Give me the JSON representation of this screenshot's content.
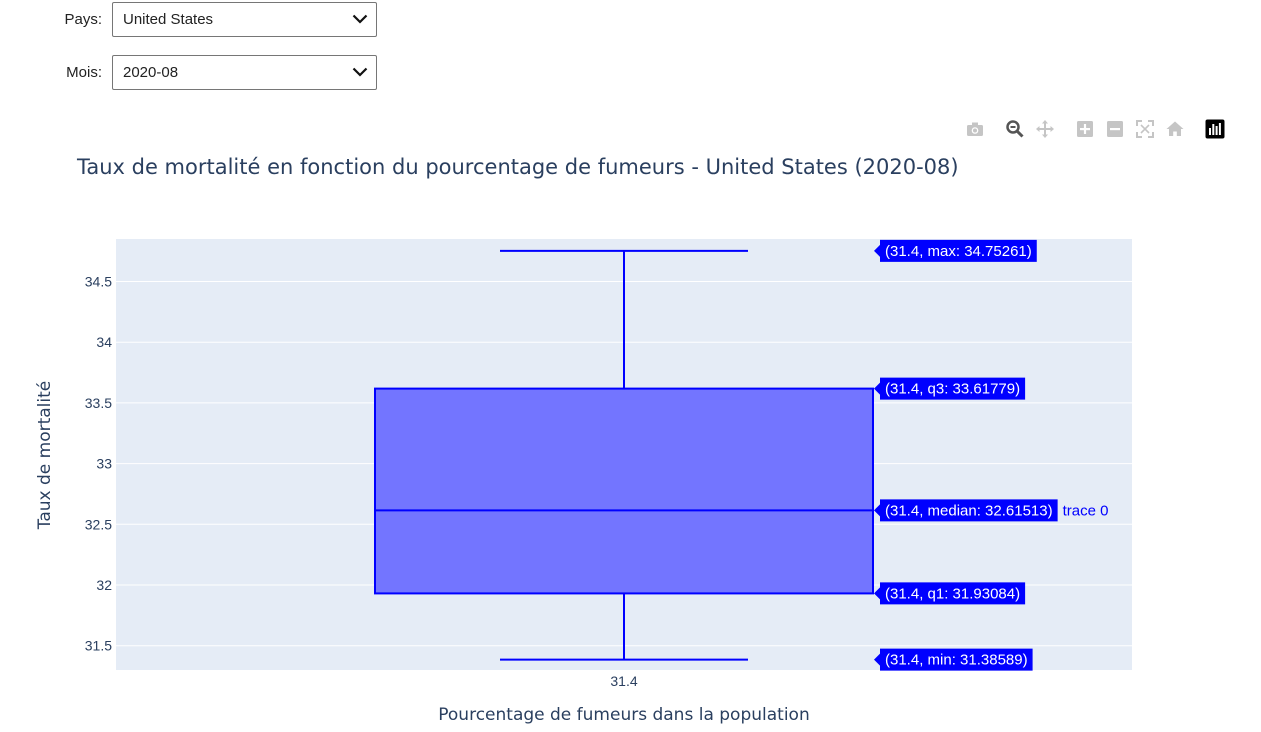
{
  "controls": {
    "country": {
      "label": "Pays:",
      "value": "United States"
    },
    "month": {
      "label": "Mois:",
      "value": "2020-08"
    }
  },
  "modebar": {
    "icons": [
      "camera-icon",
      "zoom-icon",
      "pan-icon",
      "zoom-in-icon",
      "zoom-out-icon",
      "autoscale-icon",
      "reset-axes-icon",
      "plotly-logo-icon"
    ]
  },
  "colors": {
    "box_line": "#0000ff",
    "box_fill": "#7375ff",
    "plot_bg": "#e5ecf6",
    "hover_bg": "#0000ff",
    "text": "#2a3f5f"
  },
  "chart_data": {
    "type": "box",
    "title": "Taux de mortalité en fonction du pourcentage de fumeurs - United States (2020-08)",
    "xlabel": "Pourcentage de fumeurs dans la population",
    "ylabel": "Taux de mortalité",
    "categories": [
      "31.4"
    ],
    "ylim": [
      31.3,
      34.85
    ],
    "yticks": [
      31.5,
      32,
      32.5,
      33,
      33.5,
      34,
      34.5
    ],
    "ytick_labels": [
      "31.5",
      "32",
      "32.5",
      "33",
      "33.5",
      "34",
      "34.5"
    ],
    "grid": true,
    "box": {
      "min": 31.38589,
      "q1": 31.93084,
      "median": 32.61513,
      "q3": 33.61779,
      "max": 34.75261
    },
    "hover_labels": [
      {
        "stat": "max",
        "value": 34.75261,
        "text": "(31.4, max: 34.75261)"
      },
      {
        "stat": "q3",
        "value": 33.61779,
        "text": "(31.4, q3: 33.61779)"
      },
      {
        "stat": "median",
        "value": 32.61513,
        "text": "(31.4, median: 32.61513)"
      },
      {
        "stat": "q1",
        "value": 31.93084,
        "text": "(31.4, q1: 31.93084)"
      },
      {
        "stat": "min",
        "value": 31.38589,
        "text": "(31.4, min: 31.38589)"
      }
    ],
    "trace_name": "trace 0"
  }
}
